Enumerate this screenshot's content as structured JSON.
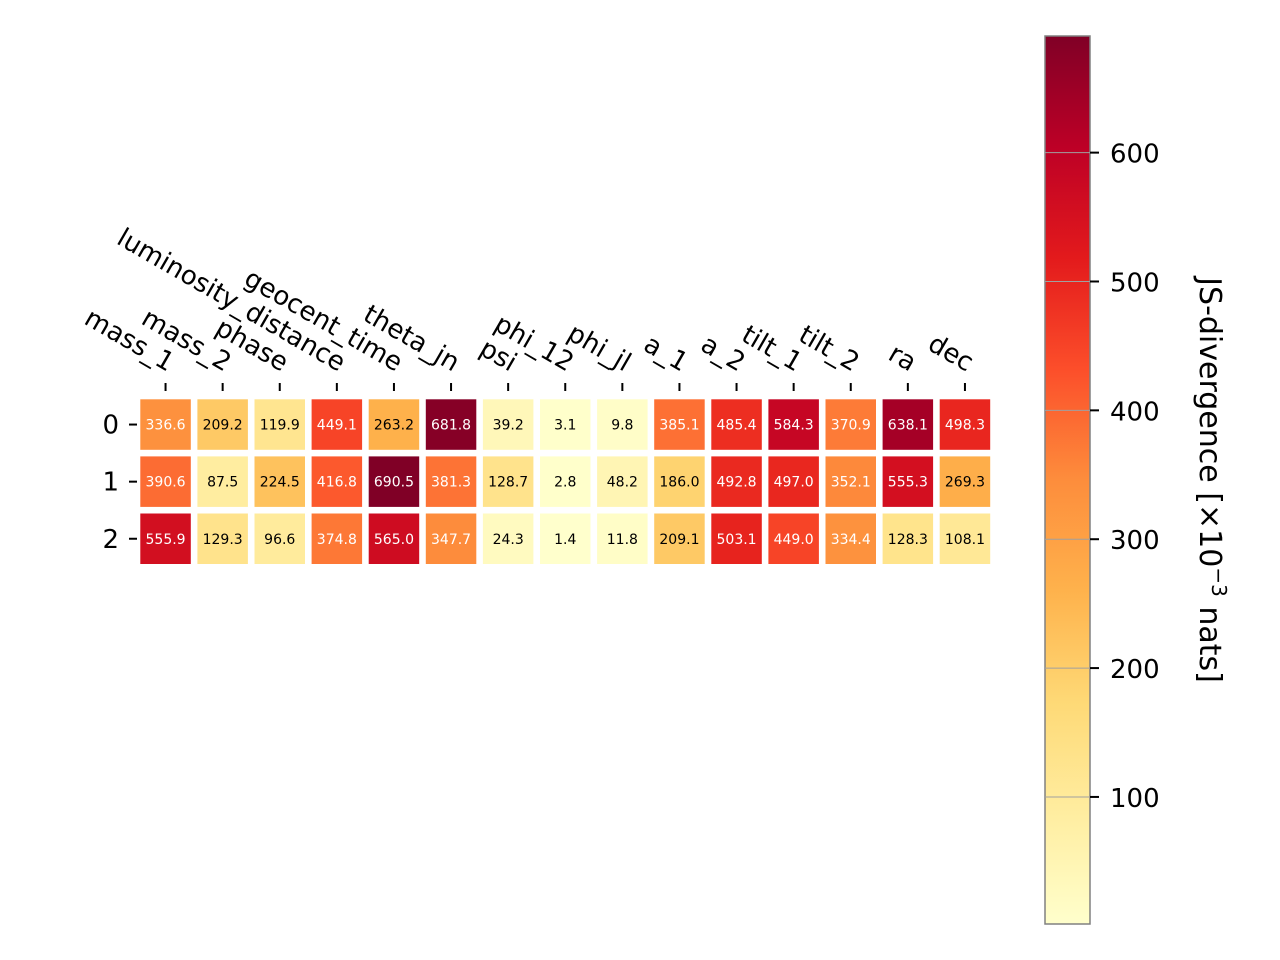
{
  "chart_data": {
    "type": "heatmap",
    "x_categories": [
      "mass_1",
      "mass_2",
      "phase",
      "luminosity_distance",
      "geocent_time",
      "theta_jn",
      "psi",
      "phi_12",
      "phi_jl",
      "a_1",
      "a_2",
      "tilt_1",
      "tilt_2",
      "ra",
      "dec"
    ],
    "y_categories": [
      "0",
      "1",
      "2"
    ],
    "values": [
      [
        336.6,
        209.2,
        119.9,
        449.1,
        263.2,
        681.8,
        39.2,
        3.1,
        9.8,
        385.1,
        485.4,
        584.3,
        370.9,
        638.1,
        498.3
      ],
      [
        390.6,
        87.5,
        224.5,
        416.8,
        690.5,
        381.3,
        128.7,
        2.8,
        48.2,
        186.0,
        492.8,
        497.0,
        352.1,
        555.3,
        269.3
      ],
      [
        555.9,
        129.3,
        96.6,
        374.8,
        565.0,
        347.7,
        24.3,
        1.4,
        11.8,
        209.1,
        503.1,
        449.0,
        334.4,
        128.3,
        108.1
      ]
    ],
    "value_labels": [
      [
        "336.6",
        "209.2",
        "119.9",
        "449.1",
        "263.2",
        "681.8",
        "39.2",
        "3.1",
        "9.8",
        "385.1",
        "485.4",
        "584.3",
        "370.9",
        "638.1",
        "498.3"
      ],
      [
        "390.6",
        "87.5",
        "224.5",
        "416.8",
        "690.5",
        "381.3",
        "128.7",
        "2.8",
        "48.2",
        "186.0",
        "492.8",
        "497.0",
        "352.1",
        "555.3",
        "269.3"
      ],
      [
        "555.9",
        "129.3",
        "96.6",
        "374.8",
        "565.0",
        "347.7",
        "24.3",
        "1.4",
        "11.8",
        "209.1",
        "503.1",
        "449.0",
        "334.4",
        "128.3",
        "108.1"
      ]
    ],
    "colormap": "YlOrRd",
    "colorbar": {
      "label": "JS-divergence [×10",
      "label_exponent": "−3",
      "label_suffix": " nats]",
      "range": [
        1.4,
        690.5
      ],
      "ticks": [
        "100",
        "200",
        "300",
        "400",
        "500",
        "600"
      ],
      "tick_values": [
        100,
        200,
        300,
        400,
        500,
        600
      ]
    },
    "grid": false,
    "colors": {
      "text_light": "#ffffff",
      "text_dark": "#000000",
      "axis": "#000000",
      "colorbar_frame": "#808080"
    }
  }
}
